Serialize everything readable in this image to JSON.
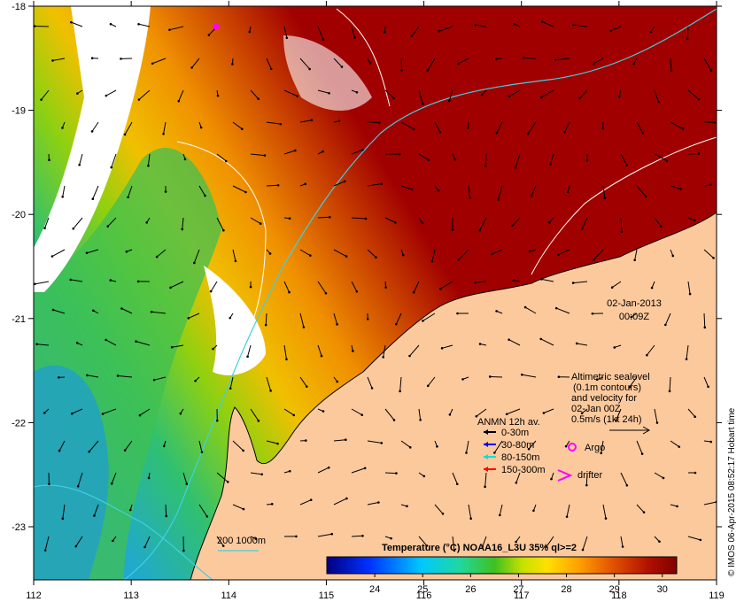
{
  "map": {
    "colors": {
      "land": "#fcc99d",
      "sst_cold": "#0000a0",
      "sst_hot": "#a00000",
      "contour": "#ffffff",
      "isobath": "#40d0e0",
      "arrow": "#000000",
      "argo": "#ff00ff",
      "drifter": "#ff00ff",
      "anmn_0_30": "#000000",
      "anmn_30_80": "#0000ff",
      "anmn_80_150": "#00e0e0",
      "anmn_150_300": "#ff0000"
    },
    "lon_ticks": [
      "112",
      "113",
      "114",
      "115",
      "116",
      "117",
      "118",
      "119"
    ],
    "lat_ticks": [
      "-18",
      "-19",
      "-20",
      "-21",
      "-22",
      "-23"
    ],
    "timestamp": {
      "date": "02-Jan-2013",
      "time": "00:09Z"
    },
    "altimetry_note": [
      "Altimetric sealevel",
      "(0.1m contours)",
      "and velocity for",
      "02-Jan 00Z",
      "0.5m/s (1kt 24h)"
    ],
    "anmn_legend": {
      "title": "ANMN 12h av.",
      "items": [
        {
          "label": "0-30m",
          "color": "#000000"
        },
        {
          "label": "30-80m",
          "color": "#0000ff"
        },
        {
          "label": "80-150m",
          "color": "#00e0e0"
        },
        {
          "label": "150-300m",
          "color": "#ff0000"
        }
      ]
    },
    "argo_label": "Argo",
    "drifter_label": "drifter",
    "isobath_label": "200  1000m",
    "colorbar": {
      "title": "Temperature (°C) NOAA16_L3U 35% ql>=2",
      "ticks": [
        "24",
        "25",
        "26",
        "27",
        "28",
        "29",
        "30"
      ],
      "range": [
        23,
        30.3
      ]
    },
    "credit": "© IMOS 06-Apr-2015 08:52:17 Hobart time"
  }
}
